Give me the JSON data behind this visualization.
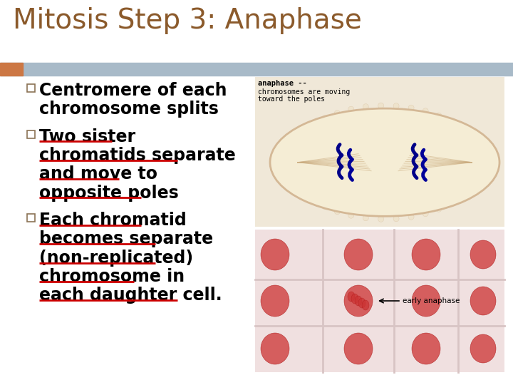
{
  "title": "Mitosis Step 3: Anaphase",
  "title_color": "#8B5A2B",
  "title_fontsize": 28,
  "title_weight": "normal",
  "bg_color": "#FFFFFF",
  "header_bar_color": "#A8BAC8",
  "header_bar_left_color": "#CC7744",
  "bullet_color": "#000000",
  "underline_color": "#CC0000",
  "bullet_fontsize": 17,
  "bullet1_lines": [
    "Centromere of each",
    "chromosome splits"
  ],
  "bullet1_underline": false,
  "bullet2_lines": [
    "Two sister",
    "chromatids separate",
    "and move to",
    "opposite poles"
  ],
  "bullet2_underline": true,
  "bullet3_lines": [
    "Each chromatid",
    "becomes separate",
    "(non-replicated)",
    "chromosome in",
    "each daughter cell."
  ],
  "bullet3_underline": true,
  "img_top_label1": "anaphase --",
  "img_top_label2": "chromosomes are moving",
  "img_top_label3": "toward the poles",
  "img_bot_label": "early anaphase"
}
